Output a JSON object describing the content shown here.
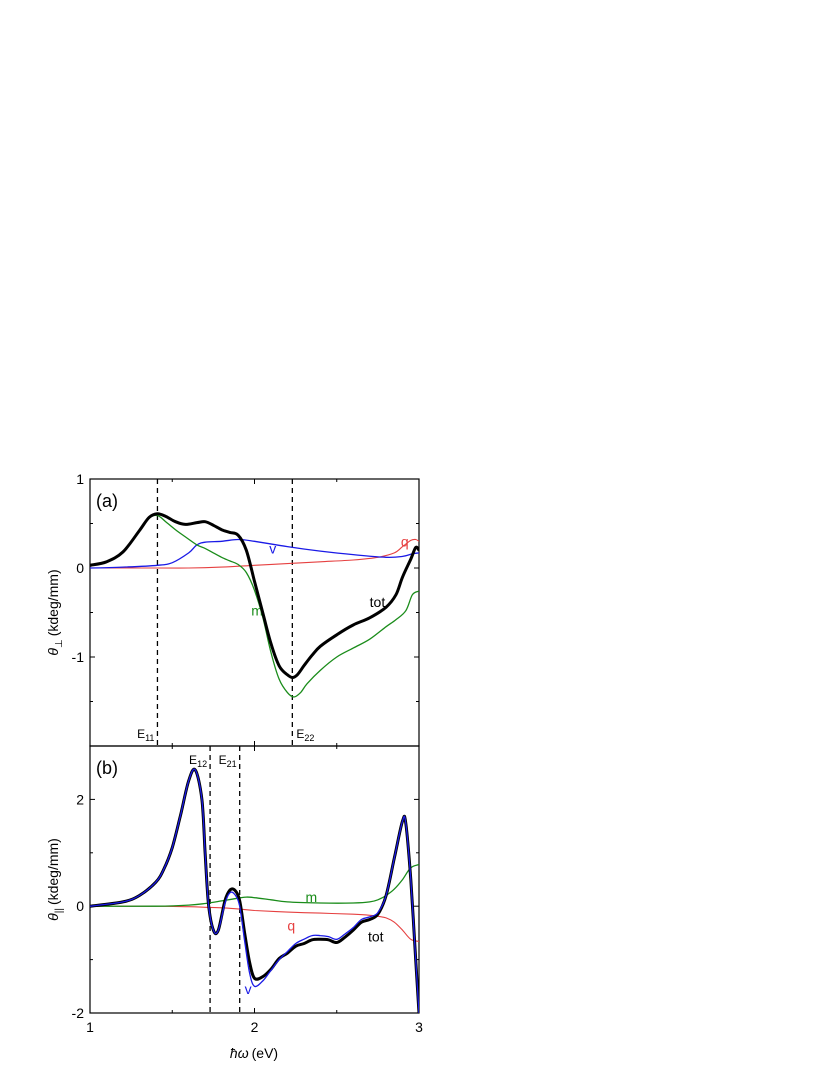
{
  "figure": {
    "xlabel_symbol": "ħω",
    "xlabel_unit": "(eV)",
    "x_tick_labels": [
      "1",
      "2",
      "3"
    ]
  },
  "chart_data": [
    {
      "type": "line",
      "panel_label": "(a)",
      "ylabel_symbol": "θ",
      "ylabel_sub": "⊥",
      "ylabel_unit": "(kdeg/mm)",
      "xlim": [
        1.0,
        3.0
      ],
      "ylim": [
        -2.0,
        1.0
      ],
      "x_ticks": [
        1,
        2,
        3
      ],
      "y_ticks": [
        1,
        0,
        -1
      ],
      "y_tick_labels": [
        "1",
        "0",
        "-1"
      ],
      "grid": false,
      "legend": "none",
      "colors": {
        "tot": "#000000",
        "m": "#1a8c1a",
        "v": "#1a1ae6",
        "q": "#e64040",
        "marker": "#000000"
      },
      "vlines": [
        {
          "x": 1.41,
          "label": "E",
          "sub": "11"
        },
        {
          "x": 2.23,
          "label": "E",
          "sub": "22"
        }
      ],
      "series": [
        {
          "name": "tot",
          "label_at": [
            2.7,
            -0.38
          ],
          "x": [
            1.0,
            1.1,
            1.2,
            1.3,
            1.36,
            1.41,
            1.46,
            1.52,
            1.58,
            1.65,
            1.7,
            1.75,
            1.8,
            1.85,
            1.9,
            1.95,
            2.0,
            2.05,
            2.1,
            2.15,
            2.2,
            2.23,
            2.26,
            2.3,
            2.35,
            2.4,
            2.5,
            2.6,
            2.7,
            2.8,
            2.86,
            2.9,
            2.95,
            2.98,
            3.0
          ],
          "y": [
            0.03,
            0.07,
            0.18,
            0.42,
            0.57,
            0.61,
            0.58,
            0.52,
            0.49,
            0.51,
            0.52,
            0.48,
            0.43,
            0.4,
            0.37,
            0.2,
            -0.15,
            -0.5,
            -0.85,
            -1.1,
            -1.2,
            -1.23,
            -1.2,
            -1.1,
            -0.98,
            -0.88,
            -0.75,
            -0.64,
            -0.56,
            -0.44,
            -0.3,
            -0.1,
            0.1,
            0.23,
            0.2
          ]
        },
        {
          "name": "m",
          "label_at": [
            1.98,
            -0.48
          ],
          "x": [
            1.0,
            1.1,
            1.2,
            1.3,
            1.36,
            1.41,
            1.46,
            1.52,
            1.58,
            1.65,
            1.7,
            1.75,
            1.8,
            1.85,
            1.9,
            1.95,
            2.0,
            2.05,
            2.1,
            2.15,
            2.2,
            2.24,
            2.28,
            2.32,
            2.4,
            2.5,
            2.6,
            2.7,
            2.8,
            2.86,
            2.92,
            2.96,
            3.0
          ],
          "y": [
            0.03,
            0.07,
            0.18,
            0.42,
            0.56,
            0.59,
            0.52,
            0.43,
            0.35,
            0.26,
            0.22,
            0.17,
            0.12,
            0.08,
            0.04,
            -0.05,
            -0.25,
            -0.55,
            -0.95,
            -1.25,
            -1.4,
            -1.45,
            -1.4,
            -1.3,
            -1.15,
            -1.0,
            -0.9,
            -0.8,
            -0.66,
            -0.58,
            -0.48,
            -0.3,
            -0.26
          ]
        },
        {
          "name": "v",
          "label_at": [
            2.09,
            0.22
          ],
          "x": [
            1.0,
            1.2,
            1.41,
            1.5,
            1.6,
            1.65,
            1.7,
            1.8,
            1.9,
            2.0,
            2.2,
            2.4,
            2.6,
            2.8,
            2.9,
            2.96,
            3.0
          ],
          "y": [
            0.0,
            0.01,
            0.03,
            0.06,
            0.17,
            0.26,
            0.29,
            0.3,
            0.32,
            0.3,
            0.24,
            0.19,
            0.15,
            0.12,
            0.13,
            0.16,
            0.17
          ]
        },
        {
          "name": "q",
          "label_at": [
            2.89,
            0.3
          ],
          "x": [
            1.0,
            1.4,
            1.6,
            1.8,
            2.0,
            2.2,
            2.4,
            2.6,
            2.75,
            2.85,
            2.9,
            2.95,
            2.98,
            3.0
          ],
          "y": [
            0.0,
            0.0,
            0.0,
            0.01,
            0.03,
            0.05,
            0.07,
            0.09,
            0.12,
            0.17,
            0.24,
            0.31,
            0.32,
            0.3
          ]
        }
      ]
    },
    {
      "type": "line",
      "panel_label": "(b)",
      "ylabel_symbol": "θ",
      "ylabel_sub": "||",
      "ylabel_unit": "(kdeg/mm)",
      "xlim": [
        1.0,
        3.0
      ],
      "ylim": [
        -2.0,
        3.0
      ],
      "x_ticks": [
        1,
        2,
        3
      ],
      "x_tick_labels": [
        "1",
        "2",
        "3"
      ],
      "y_ticks": [
        2,
        0,
        -2
      ],
      "y_tick_labels": [
        "2",
        "0",
        "-2"
      ],
      "grid": false,
      "legend": "none",
      "colors": {
        "tot": "#000000",
        "m": "#1a8c1a",
        "v": "#1a1ae6",
        "q": "#e64040",
        "marker": "#000000"
      },
      "vlines": [
        {
          "x": 1.73,
          "label": "E",
          "sub": "12"
        },
        {
          "x": 1.91,
          "label": "E",
          "sub": "21"
        }
      ],
      "series": [
        {
          "name": "tot",
          "label_at": [
            2.69,
            -0.57
          ],
          "x": [
            1.0,
            1.2,
            1.3,
            1.4,
            1.45,
            1.5,
            1.55,
            1.6,
            1.64,
            1.68,
            1.7,
            1.72,
            1.75,
            1.78,
            1.82,
            1.85,
            1.88,
            1.91,
            1.94,
            1.97,
            2.0,
            2.05,
            2.1,
            2.15,
            2.2,
            2.25,
            2.3,
            2.35,
            2.4,
            2.45,
            2.5,
            2.55,
            2.6,
            2.65,
            2.7,
            2.75,
            2.8,
            2.85,
            2.9,
            2.92,
            2.95,
            2.98,
            3.0
          ],
          "y": [
            0.0,
            0.08,
            0.2,
            0.45,
            0.7,
            1.1,
            1.7,
            2.35,
            2.55,
            2.0,
            1.0,
            0.05,
            -0.45,
            -0.45,
            0.1,
            0.3,
            0.3,
            0.1,
            -0.5,
            -1.05,
            -1.35,
            -1.32,
            -1.18,
            -0.98,
            -0.88,
            -0.75,
            -0.7,
            -0.63,
            -0.62,
            -0.63,
            -0.68,
            -0.58,
            -0.45,
            -0.3,
            -0.25,
            -0.15,
            0.2,
            0.9,
            1.6,
            1.55,
            0.5,
            -1.0,
            -2.0
          ]
        },
        {
          "name": "v",
          "label_at": [
            1.94,
            -1.55
          ],
          "x": [
            1.0,
            1.2,
            1.3,
            1.4,
            1.45,
            1.5,
            1.55,
            1.6,
            1.64,
            1.68,
            1.7,
            1.72,
            1.75,
            1.78,
            1.82,
            1.85,
            1.88,
            1.91,
            1.94,
            1.97,
            2.0,
            2.05,
            2.1,
            2.15,
            2.2,
            2.25,
            2.3,
            2.35,
            2.4,
            2.45,
            2.5,
            2.55,
            2.6,
            2.65,
            2.7,
            2.75,
            2.8,
            2.85,
            2.9,
            2.92,
            2.95,
            2.98,
            3.0
          ],
          "y": [
            0.0,
            0.08,
            0.2,
            0.45,
            0.7,
            1.1,
            1.7,
            2.35,
            2.55,
            2.0,
            1.0,
            0.05,
            -0.45,
            -0.45,
            0.05,
            0.25,
            0.22,
            0.0,
            -0.65,
            -1.25,
            -1.5,
            -1.4,
            -1.2,
            -1.0,
            -0.85,
            -0.7,
            -0.62,
            -0.55,
            -0.55,
            -0.57,
            -0.62,
            -0.52,
            -0.4,
            -0.25,
            -0.2,
            -0.12,
            0.2,
            0.9,
            1.6,
            1.55,
            0.5,
            -1.0,
            -2.0
          ]
        },
        {
          "name": "m",
          "label_at": [
            2.31,
            0.17
          ],
          "x": [
            1.0,
            1.4,
            1.6,
            1.7,
            1.8,
            1.9,
            1.95,
            2.0,
            2.1,
            2.2,
            2.4,
            2.6,
            2.7,
            2.75,
            2.8,
            2.85,
            2.9,
            2.95,
            3.0
          ],
          "y": [
            0.0,
            0.0,
            0.02,
            0.05,
            0.1,
            0.15,
            0.17,
            0.16,
            0.12,
            0.08,
            0.06,
            0.06,
            0.08,
            0.12,
            0.2,
            0.32,
            0.5,
            0.72,
            0.78
          ]
        },
        {
          "name": "q",
          "label_at": [
            2.2,
            -0.36
          ],
          "x": [
            1.0,
            1.4,
            1.6,
            1.7,
            1.8,
            1.9,
            2.0,
            2.2,
            2.4,
            2.6,
            2.7,
            2.75,
            2.8,
            2.85,
            2.9,
            2.95,
            3.0
          ],
          "y": [
            0.0,
            0.0,
            -0.01,
            -0.02,
            -0.03,
            -0.05,
            -0.08,
            -0.11,
            -0.13,
            -0.15,
            -0.17,
            -0.19,
            -0.22,
            -0.3,
            -0.45,
            -0.62,
            -0.66
          ]
        }
      ]
    }
  ]
}
